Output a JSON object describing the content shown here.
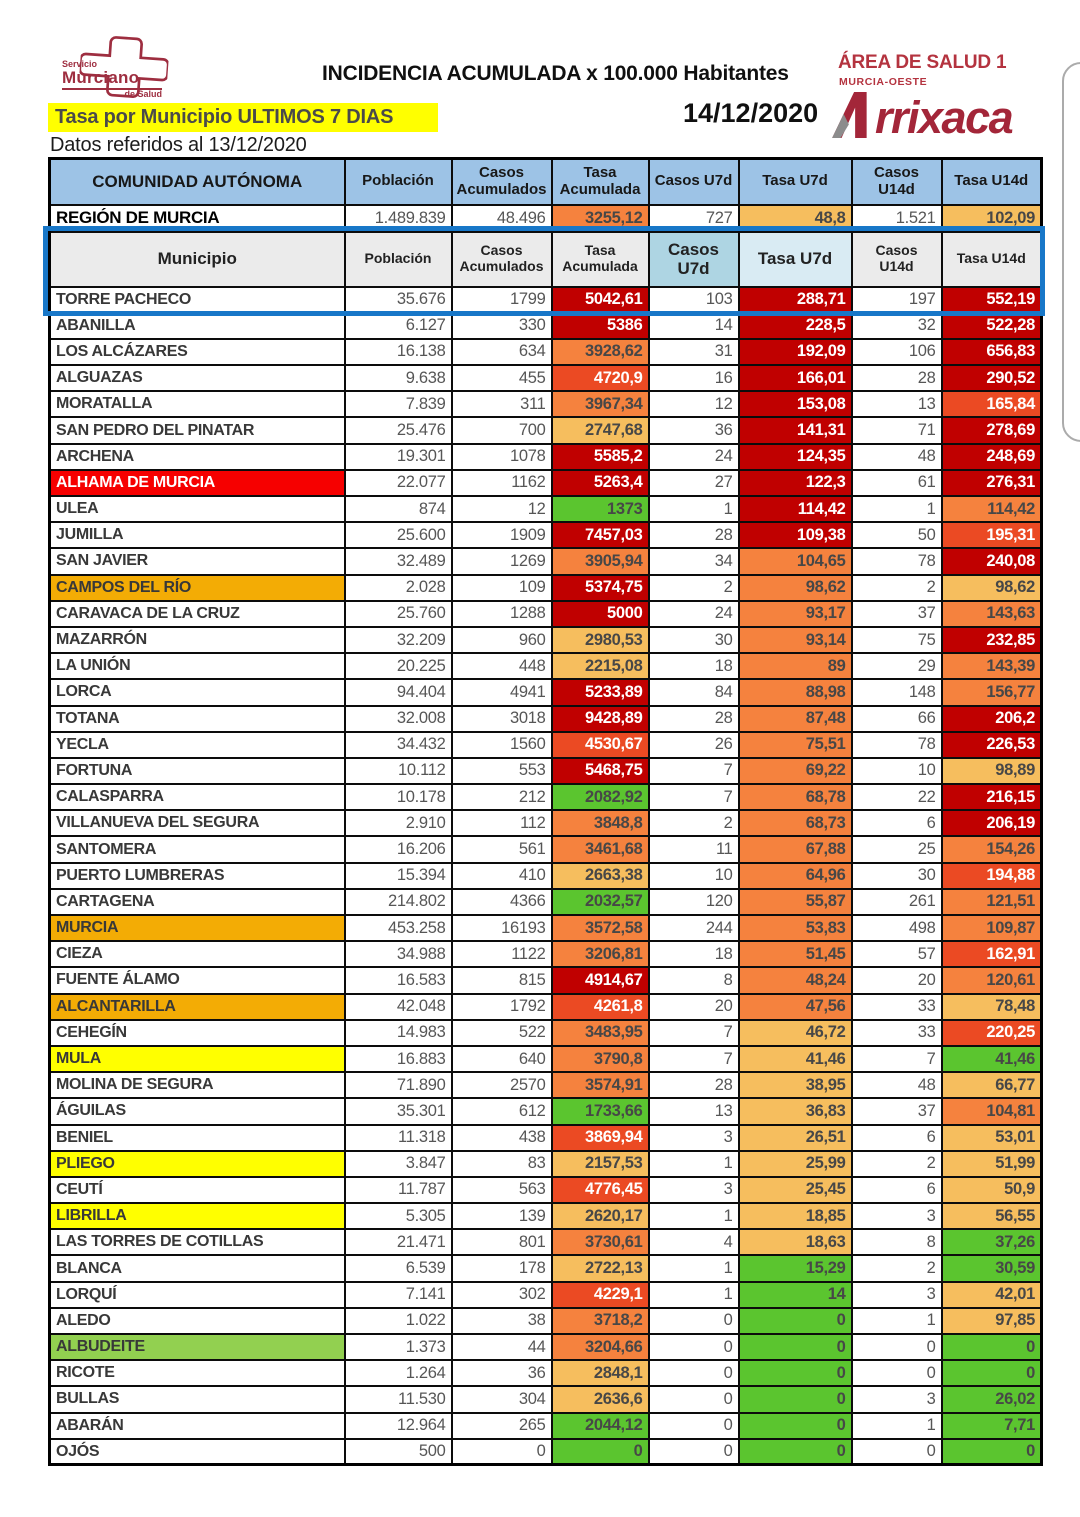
{
  "page": {
    "logo": {
      "l1": "Servicio",
      "l2": "Murciano",
      "l3": "de Salud"
    },
    "title": "INCIDENCIA ACUMULADA x 100.000 Habitantes",
    "area1": "ÁREA DE SALUD 1",
    "area2": "MURCIA-OESTE",
    "date": "14/12/2020",
    "brand_rest": "rrixaca",
    "banner": "Tasa por Municipio ULTIMOS 7 DIAS",
    "note": "Datos referidos al 13/12/2020"
  },
  "table": {
    "header1": {
      "c0": "COMUNIDAD AUTÓNOMA",
      "c1": "Población",
      "c2": "Casos Acumulados",
      "c3": "Tasa Acumulada",
      "c4": "Casos U7d",
      "c5": "Tasa U7d",
      "c6": "Casos U14d",
      "c7": "Tasa U14d"
    },
    "region": {
      "name": "REGIÓN DE MURCIA",
      "poblacion": "1.489.839",
      "casos": "48.496",
      "ta": "3255,12",
      "ta_c": "orange",
      "c7": "727",
      "t7": "48,8",
      "t7_c": "amber",
      "c14": "1.521",
      "t14": "102,09",
      "t14_c": "amber"
    },
    "header2": {
      "c0": "Municipio",
      "c1": "Población",
      "c2": "Casos Acumulados",
      "c3": "Tasa Acumulada",
      "c4": "Casos U7d",
      "c5": "Tasa U7d",
      "c6": "Casos U14d",
      "c7": "Tasa U14d"
    },
    "rows": [
      [
        "TORRE PACHECO",
        "",
        "35.676",
        "1799",
        "5042,61",
        "darkred",
        "103",
        "288,71",
        "darkred",
        "197",
        "552,19",
        "darkred"
      ],
      [
        "ABANILLA",
        "",
        "6.127",
        "330",
        "5386",
        "darkred",
        "14",
        "228,5",
        "darkred",
        "32",
        "522,28",
        "darkred"
      ],
      [
        "LOS ALCÁZARES",
        "",
        "16.138",
        "634",
        "3928,62",
        "orange",
        "31",
        "192,09",
        "darkred",
        "106",
        "656,83",
        "darkred"
      ],
      [
        "ALGUAZAS",
        "",
        "9.638",
        "455",
        "4720,9",
        "orangered",
        "16",
        "166,01",
        "darkred",
        "28",
        "290,52",
        "darkred"
      ],
      [
        "MORATALLA",
        "",
        "7.839",
        "311",
        "3967,34",
        "orange",
        "12",
        "153,08",
        "darkred",
        "13",
        "165,84",
        "orangered"
      ],
      [
        "SAN PEDRO DEL PINATAR",
        "",
        "25.476",
        "700",
        "2747,68",
        "amber",
        "36",
        "141,31",
        "darkred",
        "71",
        "278,69",
        "darkred"
      ],
      [
        "ARCHENA",
        "",
        "19.301",
        "1078",
        "5585,2",
        "darkred",
        "24",
        "124,35",
        "darkred",
        "48",
        "248,69",
        "darkred"
      ],
      [
        "ALHAMA DE MURCIA",
        "red",
        "22.077",
        "1162",
        "5263,4",
        "darkred",
        "27",
        "122,3",
        "darkred",
        "61",
        "276,31",
        "darkred"
      ],
      [
        "ULEA",
        "",
        "874",
        "12",
        "1373",
        "green",
        "1",
        "114,42",
        "darkred",
        "1",
        "114,42",
        "orange"
      ],
      [
        "JUMILLA",
        "",
        "25.600",
        "1909",
        "7457,03",
        "darkred",
        "28",
        "109,38",
        "darkred",
        "50",
        "195,31",
        "orangered"
      ],
      [
        "SAN JAVIER",
        "",
        "32.489",
        "1269",
        "3905,94",
        "orange",
        "34",
        "104,65",
        "orange",
        "78",
        "240,08",
        "darkred"
      ],
      [
        "CAMPOS DEL RÍO",
        "orange",
        "2.028",
        "109",
        "5374,75",
        "darkred",
        "2",
        "98,62",
        "orange",
        "2",
        "98,62",
        "amber"
      ],
      [
        "CARAVACA DE LA CRUZ",
        "",
        "25.760",
        "1288",
        "5000",
        "darkred",
        "24",
        "93,17",
        "orange",
        "37",
        "143,63",
        "orange"
      ],
      [
        "MAZARRÓN",
        "",
        "32.209",
        "960",
        "2980,53",
        "amber",
        "30",
        "93,14",
        "orange",
        "75",
        "232,85",
        "darkred"
      ],
      [
        "LA UNIÓN",
        "",
        "20.225",
        "448",
        "2215,08",
        "amber",
        "18",
        "89",
        "orange",
        "29",
        "143,39",
        "orange"
      ],
      [
        "LORCA",
        "",
        "94.404",
        "4941",
        "5233,89",
        "darkred",
        "84",
        "88,98",
        "orange",
        "148",
        "156,77",
        "orange"
      ],
      [
        "TOTANA",
        "",
        "32.008",
        "3018",
        "9428,89",
        "darkred",
        "28",
        "87,48",
        "orange",
        "66",
        "206,2",
        "darkred"
      ],
      [
        "YECLA",
        "",
        "34.432",
        "1560",
        "4530,67",
        "orangered",
        "26",
        "75,51",
        "orange",
        "78",
        "226,53",
        "darkred"
      ],
      [
        "FORTUNA",
        "",
        "10.112",
        "553",
        "5468,75",
        "darkred",
        "7",
        "69,22",
        "orange",
        "10",
        "98,89",
        "amber"
      ],
      [
        "CALASPARRA",
        "",
        "10.178",
        "212",
        "2082,92",
        "green",
        "7",
        "68,78",
        "orange",
        "22",
        "216,15",
        "darkred"
      ],
      [
        "VILLANUEVA DEL SEGURA",
        "",
        "2.910",
        "112",
        "3848,8",
        "orange",
        "2",
        "68,73",
        "orange",
        "6",
        "206,19",
        "darkred"
      ],
      [
        "SANTOMERA",
        "",
        "16.206",
        "561",
        "3461,68",
        "orange",
        "11",
        "67,88",
        "orange",
        "25",
        "154,26",
        "orange"
      ],
      [
        "PUERTO LUMBRERAS",
        "",
        "15.394",
        "410",
        "2663,38",
        "amber",
        "10",
        "64,96",
        "orange",
        "30",
        "194,88",
        "orangered"
      ],
      [
        "CARTAGENA",
        "",
        "214.802",
        "4366",
        "2032,57",
        "green",
        "120",
        "55,87",
        "orange",
        "261",
        "121,51",
        "orange"
      ],
      [
        "MURCIA",
        "orange",
        "453.258",
        "16193",
        "3572,58",
        "orange",
        "244",
        "53,83",
        "orange",
        "498",
        "109,87",
        "orange"
      ],
      [
        "CIEZA",
        "",
        "34.988",
        "1122",
        "3206,81",
        "orange",
        "18",
        "51,45",
        "orange",
        "57",
        "162,91",
        "orangered"
      ],
      [
        "FUENTE ÁLAMO",
        "",
        "16.583",
        "815",
        "4914,67",
        "darkred",
        "8",
        "48,24",
        "orange",
        "20",
        "120,61",
        "orange"
      ],
      [
        "ALCANTARILLA",
        "orange",
        "42.048",
        "1792",
        "4261,8",
        "orangered",
        "20",
        "47,56",
        "orange",
        "33",
        "78,48",
        "amber"
      ],
      [
        "CEHEGÍN",
        "",
        "14.983",
        "522",
        "3483,95",
        "orange",
        "7",
        "46,72",
        "amber",
        "33",
        "220,25",
        "orangered"
      ],
      [
        "MULA",
        "yellow",
        "16.883",
        "640",
        "3790,8",
        "orange",
        "7",
        "41,46",
        "amber",
        "7",
        "41,46",
        "green"
      ],
      [
        "MOLINA DE SEGURA",
        "",
        "71.890",
        "2570",
        "3574,91",
        "orange",
        "28",
        "38,95",
        "amber",
        "48",
        "66,77",
        "amber"
      ],
      [
        "ÁGUILAS",
        "",
        "35.301",
        "612",
        "1733,66",
        "green",
        "13",
        "36,83",
        "amber",
        "37",
        "104,81",
        "orange"
      ],
      [
        "BENIEL",
        "",
        "11.318",
        "438",
        "3869,94",
        "orangered",
        "3",
        "26,51",
        "amber",
        "6",
        "53,01",
        "amber"
      ],
      [
        "PLIEGO",
        "yellow",
        "3.847",
        "83",
        "2157,53",
        "amber",
        "1",
        "25,99",
        "amber",
        "2",
        "51,99",
        "amber"
      ],
      [
        "CEUTÍ",
        "",
        "11.787",
        "563",
        "4776,45",
        "orangered",
        "3",
        "25,45",
        "amber",
        "6",
        "50,9",
        "amber"
      ],
      [
        "LIBRILLA",
        "yellow",
        "5.305",
        "139",
        "2620,17",
        "amber",
        "1",
        "18,85",
        "amber",
        "3",
        "56,55",
        "amber"
      ],
      [
        "LAS TORRES DE COTILLAS",
        "",
        "21.471",
        "801",
        "3730,61",
        "orange",
        "4",
        "18,63",
        "amber",
        "8",
        "37,26",
        "green"
      ],
      [
        "BLANCA",
        "",
        "6.539",
        "178",
        "2722,13",
        "amber",
        "1",
        "15,29",
        "green",
        "2",
        "30,59",
        "green"
      ],
      [
        "LORQUÍ",
        "",
        "7.141",
        "302",
        "4229,1",
        "orangered",
        "1",
        "14",
        "green",
        "3",
        "42,01",
        "amber"
      ],
      [
        "ALEDO",
        "",
        "1.022",
        "38",
        "3718,2",
        "orange",
        "0",
        "0",
        "green",
        "1",
        "97,85",
        "amber"
      ],
      [
        "ALBUDEITE",
        "green",
        "1.373",
        "44",
        "3204,66",
        "orange",
        "0",
        "0",
        "green",
        "0",
        "0",
        "green"
      ],
      [
        "RICOTE",
        "",
        "1.264",
        "36",
        "2848,1",
        "amber",
        "0",
        "0",
        "green",
        "0",
        "0",
        "green"
      ],
      [
        "BULLAS",
        "",
        "11.530",
        "304",
        "2636,6",
        "amber",
        "0",
        "0",
        "green",
        "3",
        "26,02",
        "green"
      ],
      [
        "ABARÁN",
        "",
        "12.964",
        "265",
        "2044,12",
        "green",
        "0",
        "0",
        "green",
        "1",
        "7,71",
        "green"
      ],
      [
        "OJÓS",
        "",
        "500",
        "0",
        "0",
        "green",
        "0",
        "0",
        "green",
        "0",
        "0",
        "green"
      ]
    ]
  },
  "colors": {
    "darkred": "#C00000",
    "orangered": "#EB4A23",
    "orange": "#F5823E",
    "amber": "#F6BE5E",
    "green": "#5BC52F",
    "name_red": "#F60000",
    "name_orange": "#F3AC05",
    "name_yellow": "#FFFF00",
    "name_green": "#92D050",
    "header_blue": "#9DC3E6",
    "subhdr_blue": "#AED5E3",
    "subhdr_lightblue": "#D9EBF3",
    "selection_blue": "#1877C8"
  }
}
